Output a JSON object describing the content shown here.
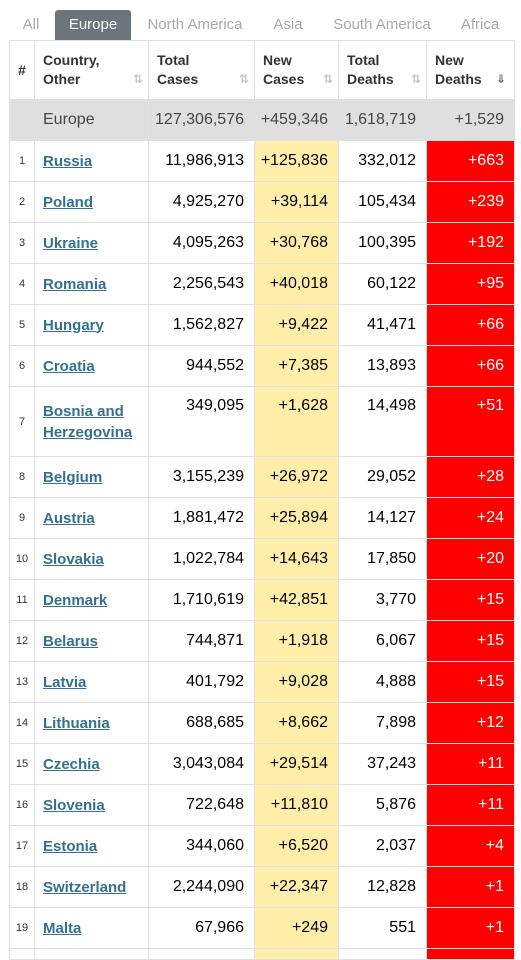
{
  "tabs": [
    "All",
    "Europe",
    "North America",
    "Asia",
    "South America",
    "Africa"
  ],
  "active_tab": "Europe",
  "headers": {
    "num": "#",
    "country_line1": "Country,",
    "country_line2": "Other",
    "total_cases_line1": "Total",
    "total_cases_line2": "Cases",
    "new_cases_line1": "New",
    "new_cases_line2": "Cases",
    "total_deaths_line1": "Total",
    "total_deaths_line2": "Deaths",
    "new_deaths_line1": "New",
    "new_deaths_line2": "Deaths"
  },
  "region_total": {
    "name": "Europe",
    "total_cases": "127,306,576",
    "new_cases": "+459,346",
    "total_deaths": "1,618,719",
    "new_deaths": "+1,529"
  },
  "rows": [
    {
      "num": "1",
      "country": "Russia",
      "total_cases": "11,986,913",
      "new_cases": "+125,836",
      "total_deaths": "332,012",
      "new_deaths": "+663"
    },
    {
      "num": "2",
      "country": "Poland",
      "total_cases": "4,925,270",
      "new_cases": "+39,114",
      "total_deaths": "105,434",
      "new_deaths": "+239"
    },
    {
      "num": "3",
      "country": "Ukraine",
      "total_cases": "4,095,263",
      "new_cases": "+30,768",
      "total_deaths": "100,395",
      "new_deaths": "+192"
    },
    {
      "num": "4",
      "country": "Romania",
      "total_cases": "2,256,543",
      "new_cases": "+40,018",
      "total_deaths": "60,122",
      "new_deaths": "+95"
    },
    {
      "num": "5",
      "country": "Hungary",
      "total_cases": "1,562,827",
      "new_cases": "+9,422",
      "total_deaths": "41,471",
      "new_deaths": "+66"
    },
    {
      "num": "6",
      "country": "Croatia",
      "total_cases": "944,552",
      "new_cases": "+7,385",
      "total_deaths": "13,893",
      "new_deaths": "+66"
    },
    {
      "num": "7",
      "country": "Bosnia and Herzegovina",
      "total_cases": "349,095",
      "new_cases": "+1,628",
      "total_deaths": "14,498",
      "new_deaths": "+51"
    },
    {
      "num": "8",
      "country": "Belgium",
      "total_cases": "3,155,239",
      "new_cases": "+26,972",
      "total_deaths": "29,052",
      "new_deaths": "+28"
    },
    {
      "num": "9",
      "country": "Austria",
      "total_cases": "1,881,472",
      "new_cases": "+25,894",
      "total_deaths": "14,127",
      "new_deaths": "+24"
    },
    {
      "num": "10",
      "country": "Slovakia",
      "total_cases": "1,022,784",
      "new_cases": "+14,643",
      "total_deaths": "17,850",
      "new_deaths": "+20"
    },
    {
      "num": "11",
      "country": "Denmark",
      "total_cases": "1,710,619",
      "new_cases": "+42,851",
      "total_deaths": "3,770",
      "new_deaths": "+15"
    },
    {
      "num": "12",
      "country": "Belarus",
      "total_cases": "744,871",
      "new_cases": "+1,918",
      "total_deaths": "6,067",
      "new_deaths": "+15"
    },
    {
      "num": "13",
      "country": "Latvia",
      "total_cases": "401,792",
      "new_cases": "+9,028",
      "total_deaths": "4,888",
      "new_deaths": "+15"
    },
    {
      "num": "14",
      "country": "Lithuania",
      "total_cases": "688,685",
      "new_cases": "+8,662",
      "total_deaths": "7,898",
      "new_deaths": "+12"
    },
    {
      "num": "15",
      "country": "Czechia",
      "total_cases": "3,043,084",
      "new_cases": "+29,514",
      "total_deaths": "37,243",
      "new_deaths": "+11"
    },
    {
      "num": "16",
      "country": "Slovenia",
      "total_cases": "722,648",
      "new_cases": "+11,810",
      "total_deaths": "5,876",
      "new_deaths": "+11"
    },
    {
      "num": "17",
      "country": "Estonia",
      "total_cases": "344,060",
      "new_cases": "+6,520",
      "total_deaths": "2,037",
      "new_deaths": "+4"
    },
    {
      "num": "18",
      "country": "Switzerland",
      "total_cases": "2,244,090",
      "new_cases": "+22,347",
      "total_deaths": "12,828",
      "new_deaths": "+1"
    },
    {
      "num": "19",
      "country": "Malta",
      "total_cases": "67,966",
      "new_cases": "+249",
      "total_deaths": "551",
      "new_deaths": "+1"
    }
  ],
  "colors": {
    "active_tab_bg": "#6c757d",
    "new_cases_bg": "#ffeeaa",
    "new_deaths_bg": "#ff0000",
    "country_link": "#33718f",
    "total_row_bg": "#dfdfdf"
  },
  "icons": {
    "sort_inactive": "sort-arrows-icon",
    "sort_active": "sort-descending-icon"
  }
}
